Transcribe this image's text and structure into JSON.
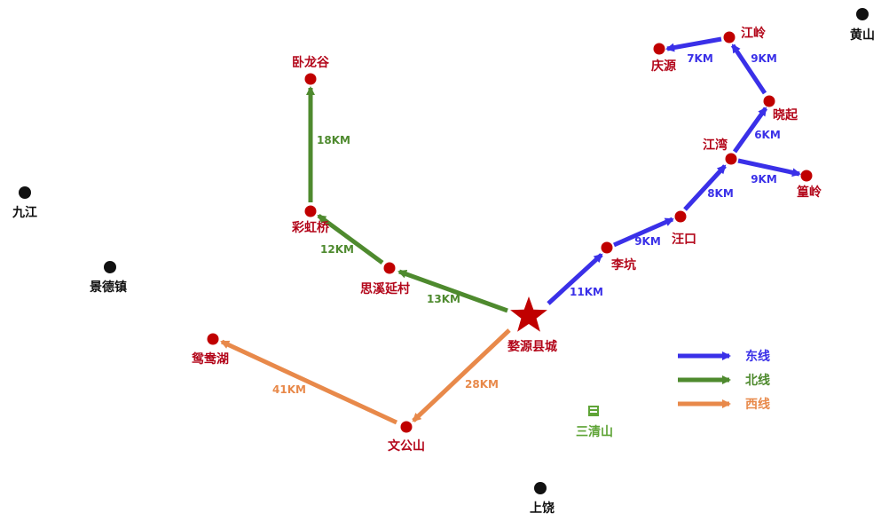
{
  "colors": {
    "east": "#3a30e8",
    "north": "#4e8a2e",
    "west": "#e8894a",
    "spot": "#c00000",
    "star": "#c00000",
    "city": "#111111",
    "city_label": "#111111",
    "spot_label": "#b3061a",
    "mountain": "#5fa437"
  },
  "cities": [
    {
      "id": "huangshan",
      "name": "黄山"
    },
    {
      "id": "jiujiang",
      "name": "九江"
    },
    {
      "id": "jingdezhen",
      "name": "景德镇"
    },
    {
      "id": "shangrao",
      "name": "上饶"
    }
  ],
  "center": {
    "name": "婺源县城"
  },
  "spots": [
    {
      "id": "wolonggu",
      "name": "卧龙谷"
    },
    {
      "id": "caihongqiao",
      "name": "彩虹桥"
    },
    {
      "id": "sixiyan",
      "name": "思溪延村"
    },
    {
      "id": "yuanyanghu",
      "name": "鸳鸯湖"
    },
    {
      "id": "wengongshan",
      "name": "文公山"
    },
    {
      "id": "likeng",
      "name": "李坑"
    },
    {
      "id": "wangkou",
      "name": "汪口"
    },
    {
      "id": "jiangwan",
      "name": "江湾"
    },
    {
      "id": "huangling",
      "name": "篁岭"
    },
    {
      "id": "xiaoqi",
      "name": "晓起"
    },
    {
      "id": "jiangling",
      "name": "江岭"
    },
    {
      "id": "qingyuan",
      "name": "庆源"
    }
  ],
  "routes": [
    {
      "line": "east",
      "from": "center",
      "to": "likeng",
      "distance": "11KM"
    },
    {
      "line": "east",
      "from": "likeng",
      "to": "wangkou",
      "distance": "9KM"
    },
    {
      "line": "east",
      "from": "wangkou",
      "to": "jiangwan",
      "distance": "8KM"
    },
    {
      "line": "east",
      "from": "jiangwan",
      "to": "huangling",
      "distance": "9KM"
    },
    {
      "line": "east",
      "from": "jiangwan",
      "to": "xiaoqi",
      "distance": "6KM"
    },
    {
      "line": "east",
      "from": "xiaoqi",
      "to": "jiangling",
      "distance": "9KM"
    },
    {
      "line": "east",
      "from": "jiangling",
      "to": "qingyuan",
      "distance": "7KM"
    },
    {
      "line": "north",
      "from": "center",
      "to": "sixiyan",
      "distance": "13KM"
    },
    {
      "line": "north",
      "from": "sixiyan",
      "to": "caihongqiao",
      "distance": "12KM"
    },
    {
      "line": "north",
      "from": "caihongqiao",
      "to": "wolonggu",
      "distance": "18KM"
    },
    {
      "line": "west",
      "from": "center",
      "to": "wengongshan",
      "distance": "28KM"
    },
    {
      "line": "west",
      "from": "wengongshan",
      "to": "yuanyanghu",
      "distance": "41KM"
    }
  ],
  "legend": [
    {
      "line": "east",
      "label": "东线"
    },
    {
      "line": "north",
      "label": "北线"
    },
    {
      "line": "west",
      "label": "西线"
    }
  ],
  "mountain": {
    "name": "三清山",
    "icon": "mountain-icon"
  }
}
